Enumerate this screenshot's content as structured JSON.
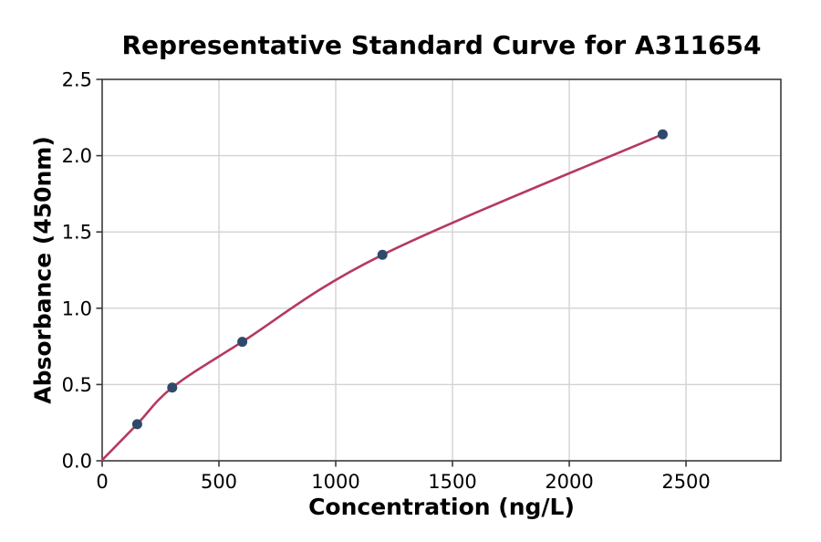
{
  "chart_data": {
    "type": "scatter",
    "title": "Representative Standard Curve for A311654",
    "xlabel": "Concentration (ng/L)",
    "ylabel": "Absorbance (450nm)",
    "xlim": [
      0,
      2906
    ],
    "ylim": [
      0,
      2.5
    ],
    "grid": true,
    "legend": "none",
    "x_ticks": [
      0,
      500,
      1000,
      1500,
      2000,
      2500
    ],
    "x_tick_labels": [
      "0",
      "500",
      "1000",
      "1500",
      "2000",
      "2500"
    ],
    "y_ticks": [
      0,
      0.5,
      1,
      1.5,
      2,
      2.5
    ],
    "y_tick_labels": [
      "0.0",
      "0.5",
      "1.0",
      "1.5",
      "2.0",
      "2.5"
    ],
    "points": [
      {
        "x": 150,
        "y": 0.24
      },
      {
        "x": 300,
        "y": 0.48
      },
      {
        "x": 600,
        "y": 0.78
      },
      {
        "x": 1200,
        "y": 1.35
      },
      {
        "x": 2400,
        "y": 2.14
      }
    ],
    "fit_curve": {
      "start": {
        "x": 0,
        "y": 0.005
      },
      "through_points": true
    },
    "colors": {
      "curve": "#b53a5f",
      "point": "#2e4a6b",
      "grid": "#d3d3d3",
      "spine": "#3a3a3a",
      "text": "#000000",
      "background": "#ffffff"
    }
  }
}
